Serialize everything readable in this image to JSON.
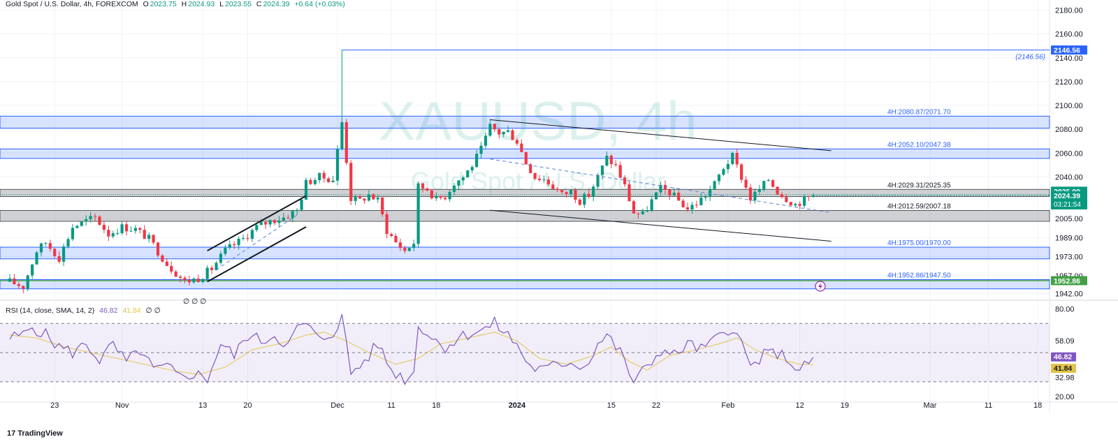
{
  "legend": {
    "symbol": "Gold Spot / U.S. Dollar, 4h, FOREXCOM",
    "open_label": "O",
    "open": "2023.75",
    "high_label": "H",
    "high": "2024.93",
    "low_label": "L",
    "low": "2023.55",
    "close_label": "C",
    "close": "2024.39",
    "change": "+0.64 (+0.03%)"
  },
  "watermark": {
    "main": "XAUUSD, 4h",
    "sub": "Gold Spot / U.S. Dollar"
  },
  "rsi_legend": {
    "label": "RSI (14, close, SMA, 14, 2)",
    "rsi": "46.82",
    "sma": "41.84",
    "extra": "∅ ∅"
  },
  "extra_marks": "∅ ∅ ∅",
  "brand": {
    "logo": "17",
    "name": "TradingView"
  },
  "colors": {
    "up": "#089981",
    "down": "#f23645",
    "zone_blue": "#2962ff",
    "rsi": "#7e57c2",
    "rsi_sma": "#e0c348",
    "green_line": "#43a047"
  },
  "chart_data": [
    {
      "type": "candlestick",
      "title": "Gold Spot / U.S. Dollar, 4h, FOREXCOM",
      "ylim": [
        1940,
        2185
      ],
      "yticks": [
        "2180.00",
        "2160.00",
        "2140.00",
        "2120.00",
        "2100.00",
        "2080.00",
        "2060.00",
        "2040.00",
        "2025.09",
        "2005.00",
        "1989.00",
        "1973.00",
        "1957.00",
        "1942.00"
      ],
      "xticks": [
        {
          "label": "23",
          "index": 10
        },
        {
          "label": "Nov",
          "index": 25
        },
        {
          "label": "13",
          "index": 43
        },
        {
          "label": "20",
          "index": 53
        },
        {
          "label": "Dec",
          "index": 73
        },
        {
          "label": "11",
          "index": 85
        },
        {
          "label": "18",
          "index": 95
        },
        {
          "label": "2024",
          "index": 113
        },
        {
          "label": "15",
          "index": 134
        },
        {
          "label": "22",
          "index": 144
        },
        {
          "label": "Feb",
          "index": 160
        },
        {
          "label": "12",
          "index": 176
        },
        {
          "label": "19",
          "index": 186
        },
        {
          "label": "Mar",
          "index": 205
        },
        {
          "label": "11",
          "index": 218
        },
        {
          "label": "18",
          "index": 229
        }
      ],
      "ohlc_anchors": [
        [
          0,
          1952
        ],
        [
          3,
          1948
        ],
        [
          6,
          1978
        ],
        [
          8,
          1985
        ],
        [
          11,
          1972
        ],
        [
          14,
          1998
        ],
        [
          17,
          2003
        ],
        [
          19,
          2006
        ],
        [
          22,
          1992
        ],
        [
          25,
          1998
        ],
        [
          28,
          1996
        ],
        [
          31,
          1988
        ],
        [
          35,
          1967
        ],
        [
          39,
          1952
        ],
        [
          42,
          1955
        ],
        [
          45,
          1963
        ],
        [
          48,
          1978
        ],
        [
          52,
          1988
        ],
        [
          55,
          1998
        ],
        [
          58,
          2003
        ],
        [
          61,
          2006
        ],
        [
          64,
          2012
        ],
        [
          66,
          2035
        ],
        [
          69,
          2040
        ],
        [
          72,
          2038
        ],
        [
          74,
          2086
        ],
        [
          76,
          2022
        ],
        [
          78,
          2020
        ],
        [
          80,
          2025
        ],
        [
          82,
          2020
        ],
        [
          84,
          1995
        ],
        [
          86,
          1985
        ],
        [
          88,
          1978
        ],
        [
          90,
          1985
        ],
        [
          91,
          2032
        ],
        [
          93,
          2030
        ],
        [
          95,
          2021
        ],
        [
          97,
          2024
        ],
        [
          99,
          2035
        ],
        [
          101,
          2040
        ],
        [
          103,
          2050
        ],
        [
          105,
          2063
        ],
        [
          107,
          2082
        ],
        [
          109,
          2077
        ],
        [
          111,
          2078
        ],
        [
          113,
          2070
        ],
        [
          115,
          2052
        ],
        [
          117,
          2040
        ],
        [
          119,
          2038
        ],
        [
          121,
          2032
        ],
        [
          123,
          2025
        ],
        [
          125,
          2028
        ],
        [
          127,
          2020
        ],
        [
          129,
          2025
        ],
        [
          131,
          2040
        ],
        [
          133,
          2056
        ],
        [
          135,
          2049
        ],
        [
          137,
          2032
        ],
        [
          139,
          2010
        ],
        [
          141,
          2008
        ],
        [
          143,
          2020
        ],
        [
          145,
          2030
        ],
        [
          147,
          2027
        ],
        [
          149,
          2020
        ],
        [
          151,
          2013
        ],
        [
          153,
          2018
        ],
        [
          155,
          2025
        ],
        [
          157,
          2034
        ],
        [
          159,
          2048
        ],
        [
          161,
          2057
        ],
        [
          163,
          2040
        ],
        [
          165,
          2022
        ],
        [
          167,
          2029
        ],
        [
          169,
          2038
        ],
        [
          171,
          2028
        ],
        [
          173,
          2022
        ],
        [
          175,
          2017
        ],
        [
          177,
          2021
        ],
        [
          179,
          2024.39
        ]
      ],
      "last_index": 179,
      "spike": {
        "index": 74,
        "high": 2146.56
      },
      "zones": [
        {
          "label": "4H:2080.87/2071.70",
          "from": 2080.87,
          "to": 2091,
          "style": "blue"
        },
        {
          "label": "4H:2052.10/2047.38",
          "from": 2055.5,
          "to": 2063.5,
          "style": "blue"
        },
        {
          "label": "4H:2029.31/2025.35",
          "from": 2023.5,
          "to": 2029.5,
          "style": "gray"
        },
        {
          "label": "4H:2012.59/2007.18",
          "from": 2002.7,
          "to": 2011.8,
          "style": "gray"
        },
        {
          "label": "4H:1975.00/1970.00",
          "from": 1971.2,
          "to": 1981,
          "style": "blue"
        },
        {
          "label": "4H:1952.86/1947.50",
          "from": 1946,
          "to": 1953.8,
          "style": "blue"
        }
      ],
      "high_line": {
        "value": 2146.56,
        "label": "2146.56",
        "annotation": "(2146.56)",
        "from_index": 74
      },
      "green_line": {
        "value": 1952.86,
        "label": "1952.86"
      },
      "current_price": {
        "value": 2024.39,
        "label": "2024.39",
        "countdown": "03:21:54"
      },
      "reference_price": {
        "value": 2025.09,
        "label": "2025.09"
      },
      "trendlines": [
        {
          "from": [
            107,
            2088
          ],
          "to": [
            183,
            2062
          ],
          "style": "solid"
        },
        {
          "from": [
            107,
            2012
          ],
          "to": [
            183,
            1986
          ],
          "style": "solid"
        },
        {
          "from": [
            107,
            2055
          ],
          "to": [
            183,
            2010
          ],
          "style": "dashed"
        },
        {
          "from": [
            44,
            1978
          ],
          "to": [
            66,
            2024
          ],
          "style": "solid-bold"
        },
        {
          "from": [
            44,
            1952
          ],
          "to": [
            66,
            1998
          ],
          "style": "solid-bold"
        },
        {
          "from": [
            46,
            1962
          ],
          "to": [
            64,
            2008
          ],
          "style": "dashed"
        }
      ]
    },
    {
      "type": "line",
      "title": "RSI (14, close, SMA, 14, 2)",
      "ylim": [
        18,
        84
      ],
      "yticks": [
        "80.00",
        "58.09",
        "32.98",
        "20.00"
      ],
      "bands": {
        "upper": 70,
        "middle": 50,
        "lower": 30
      },
      "series": [
        {
          "name": "RSI",
          "value": 46.82,
          "anchors": [
            [
              0,
              60
            ],
            [
              3,
              62
            ],
            [
              5,
              68
            ],
            [
              8,
              62
            ],
            [
              11,
              54
            ],
            [
              14,
              50
            ],
            [
              17,
              56
            ],
            [
              20,
              45
            ],
            [
              23,
              55
            ],
            [
              26,
              43
            ],
            [
              29,
              52
            ],
            [
              32,
              38
            ],
            [
              35,
              40
            ],
            [
              38,
              33
            ],
            [
              41,
              36
            ],
            [
              44,
              32
            ],
            [
              47,
              56
            ],
            [
              50,
              48
            ],
            [
              53,
              62
            ],
            [
              56,
              58
            ],
            [
              59,
              62
            ],
            [
              62,
              55
            ],
            [
              64,
              66
            ],
            [
              66,
              70
            ],
            [
              69,
              58
            ],
            [
              72,
              64
            ],
            [
              74,
              74
            ],
            [
              76,
              36
            ],
            [
              79,
              44
            ],
            [
              82,
              56
            ],
            [
              85,
              38
            ],
            [
              88,
              32
            ],
            [
              90,
              36
            ],
            [
              91,
              70
            ],
            [
              94,
              60
            ],
            [
              97,
              54
            ],
            [
              100,
              60
            ],
            [
              103,
              64
            ],
            [
              106,
              66
            ],
            [
              108,
              70
            ],
            [
              111,
              62
            ],
            [
              113,
              55
            ],
            [
              116,
              40
            ],
            [
              119,
              38
            ],
            [
              122,
              42
            ],
            [
              125,
              44
            ],
            [
              128,
              40
            ],
            [
              131,
              56
            ],
            [
              133,
              62
            ],
            [
              136,
              50
            ],
            [
              139,
              30
            ],
            [
              142,
              40
            ],
            [
              145,
              52
            ],
            [
              148,
              48
            ],
            [
              151,
              56
            ],
            [
              154,
              52
            ],
            [
              157,
              58
            ],
            [
              159,
              64
            ],
            [
              161,
              68
            ],
            [
              163,
              56
            ],
            [
              165,
              40
            ],
            [
              168,
              48
            ],
            [
              171,
              50
            ],
            [
              174,
              44
            ],
            [
              176,
              36
            ],
            [
              178,
              44
            ],
            [
              179,
              46.82
            ]
          ]
        },
        {
          "name": "SMA",
          "value": 41.84,
          "anchors": [
            [
              0,
              62
            ],
            [
              6,
              60
            ],
            [
              12,
              54
            ],
            [
              18,
              50
            ],
            [
              24,
              46
            ],
            [
              30,
              42
            ],
            [
              36,
              38
            ],
            [
              42,
              35
            ],
            [
              48,
              40
            ],
            [
              54,
              52
            ],
            [
              60,
              56
            ],
            [
              66,
              62
            ],
            [
              70,
              64
            ],
            [
              75,
              58
            ],
            [
              80,
              50
            ],
            [
              86,
              42
            ],
            [
              91,
              46
            ],
            [
              96,
              56
            ],
            [
              102,
              60
            ],
            [
              108,
              64
            ],
            [
              113,
              58
            ],
            [
              118,
              46
            ],
            [
              124,
              42
            ],
            [
              130,
              48
            ],
            [
              134,
              54
            ],
            [
              138,
              44
            ],
            [
              142,
              38
            ],
            [
              147,
              48
            ],
            [
              153,
              52
            ],
            [
              158,
              56
            ],
            [
              162,
              60
            ],
            [
              166,
              52
            ],
            [
              171,
              46
            ],
            [
              176,
              42
            ],
            [
              179,
              41.84
            ]
          ]
        }
      ]
    }
  ]
}
